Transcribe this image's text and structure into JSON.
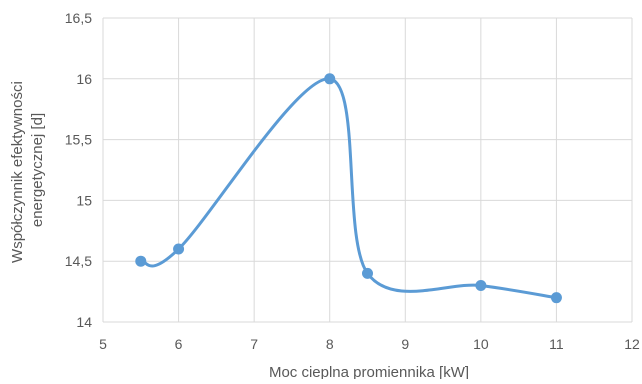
{
  "chart_data": {
    "type": "scatter",
    "title": "",
    "xlabel": "Moc cieplna promiennika [kW]",
    "ylabel_lines": [
      "Współczynnik efektywności",
      "energetycznej [d]"
    ],
    "xlim": [
      5,
      12
    ],
    "ylim": [
      14,
      16.5
    ],
    "x_ticks": [
      5,
      6,
      7,
      8,
      9,
      10,
      11,
      12
    ],
    "y_ticks": [
      14,
      14.5,
      15,
      15.5,
      16,
      16.5
    ],
    "x_tick_labels": [
      "5",
      "6",
      "7",
      "8",
      "9",
      "10",
      "11",
      "12"
    ],
    "y_tick_labels": [
      "14",
      "14,5",
      "15",
      "15,5",
      "16",
      "16,5"
    ],
    "grid": true,
    "legend": "none",
    "line_style": "smoothed",
    "series": [
      {
        "x": [
          5.5,
          6,
          8,
          8.5,
          10,
          11
        ],
        "y": [
          14.5,
          14.6,
          16.0,
          14.4,
          14.3,
          14.2
        ],
        "color": "#5b9bd5"
      }
    ],
    "colors": {
      "series": "#5b9bd5",
      "grid": "#d9d9d9",
      "text": "#595959"
    }
  }
}
